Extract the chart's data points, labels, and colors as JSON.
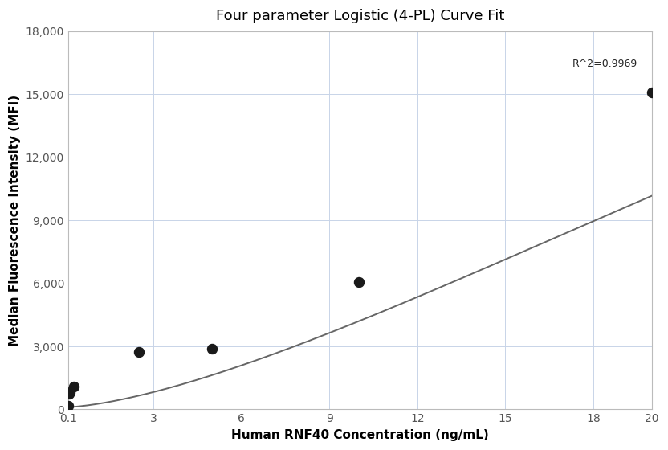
{
  "title": "Four parameter Logistic (4-PL) Curve Fit",
  "xlabel": "Human RNF40 Concentration (ng/mL)",
  "ylabel": "Median Fluorescence Intensity (MFI)",
  "scatter_x": [
    0.1,
    0.123,
    0.156,
    0.3,
    2.5,
    5.0,
    10.0,
    20.0
  ],
  "scatter_y": [
    180,
    750,
    820,
    1100,
    2750,
    2900,
    6050,
    15100
  ],
  "dot_color": "#1a1a1a",
  "dot_size": 75,
  "line_color": "#666666",
  "line_width": 1.4,
  "xlim": [
    0.1,
    20
  ],
  "ylim": [
    0,
    18000
  ],
  "yticks": [
    0,
    3000,
    6000,
    9000,
    12000,
    15000,
    18000
  ],
  "xtick_positions": [
    0.1,
    3,
    6,
    9,
    12,
    15,
    18,
    20
  ],
  "xtick_labels": [
    "0.1",
    "3",
    "6",
    "9",
    "12",
    "15",
    "18",
    "20"
  ],
  "r_squared_text": "R^2=0.9969",
  "r_squared_x": 19.5,
  "r_squared_y": 16200,
  "background_color": "#ffffff",
  "grid_color": "#c8d4e8",
  "title_fontsize": 13,
  "label_fontsize": 11,
  "tick_fontsize": 10
}
